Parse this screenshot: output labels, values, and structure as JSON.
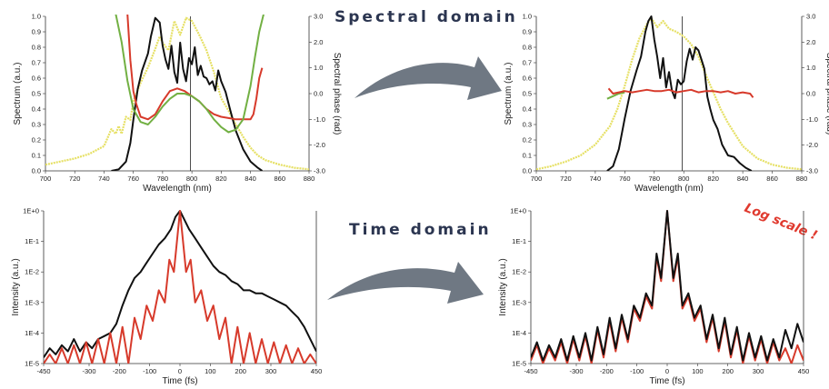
{
  "headings": {
    "spectral": "Spectral domain",
    "time": "Time domain",
    "note": "Log scale !"
  },
  "colors": {
    "black": "#111111",
    "red": "#d73a2b",
    "green": "#72b043",
    "yellow": "#e6e064",
    "arrow": "#6f7883"
  },
  "chart_data": [
    {
      "id": "spectral-before",
      "type": "line",
      "xlabel": "Wavelength (nm)",
      "ylabel": "Spectrum (a.u.)",
      "y2label": "Spectral phase (rad)",
      "xlim": [
        700,
        880
      ],
      "ylim": [
        0,
        1.0
      ],
      "y2lim": [
        -3.0,
        3.0
      ],
      "xticks": [
        "700",
        "720",
        "740",
        "760",
        "780",
        "800",
        "820",
        "840",
        "860",
        "880"
      ],
      "yticks": [
        "0.0",
        "0.1",
        "0.2",
        "0.3",
        "0.4",
        "0.5",
        "0.6",
        "0.7",
        "0.8",
        "0.9",
        "1.0"
      ],
      "y2ticks": [
        "-3.0",
        "-2.0",
        "-1.0",
        "0.0",
        "1.0",
        "2.0",
        "3.0"
      ],
      "vline": 799,
      "series": [
        {
          "color": "yellow",
          "axis": "left",
          "x": [
            700,
            710,
            720,
            730,
            740,
            745,
            748,
            750,
            752,
            755,
            758,
            760,
            765,
            770,
            775,
            778,
            780,
            784,
            788,
            792,
            796,
            800,
            805,
            810,
            815,
            820,
            825,
            830,
            835,
            840,
            845,
            850,
            860,
            870,
            880
          ],
          "y": [
            0.04,
            0.06,
            0.08,
            0.11,
            0.16,
            0.27,
            0.24,
            0.29,
            0.24,
            0.35,
            0.33,
            0.45,
            0.57,
            0.67,
            0.79,
            0.87,
            0.83,
            0.78,
            0.97,
            0.88,
            0.99,
            0.97,
            0.88,
            0.78,
            0.64,
            0.47,
            0.39,
            0.3,
            0.22,
            0.15,
            0.1,
            0.07,
            0.04,
            0.02,
            0.01
          ]
        },
        {
          "color": "black",
          "axis": "left",
          "x": [
            745,
            750,
            755,
            758,
            760,
            763,
            766,
            770,
            772,
            775,
            778,
            780,
            782,
            784,
            786,
            788,
            790,
            792,
            794,
            796,
            798,
            800,
            802,
            804,
            806,
            808,
            810,
            812,
            814,
            816,
            818,
            820,
            823,
            826,
            830,
            835,
            840,
            845,
            848
          ],
          "y": [
            0.0,
            0.01,
            0.06,
            0.18,
            0.33,
            0.53,
            0.65,
            0.76,
            0.87,
            0.99,
            0.96,
            0.81,
            0.72,
            0.66,
            0.81,
            0.64,
            0.57,
            0.83,
            0.66,
            0.58,
            0.73,
            0.69,
            0.8,
            0.62,
            0.68,
            0.61,
            0.6,
            0.56,
            0.58,
            0.52,
            0.65,
            0.58,
            0.51,
            0.4,
            0.26,
            0.14,
            0.06,
            0.02,
            0.0
          ]
        },
        {
          "color": "red",
          "axis": "right",
          "x": [
            756,
            758,
            760,
            762,
            765,
            770,
            775,
            780,
            785,
            790,
            795,
            800,
            805,
            810,
            815,
            820,
            825,
            830,
            835,
            840,
            842,
            844,
            846,
            848
          ],
          "y": [
            3.1,
            1.3,
            0.1,
            -0.4,
            -0.9,
            -1.0,
            -0.8,
            -0.3,
            0.1,
            0.2,
            0.1,
            -0.1,
            -0.3,
            -0.6,
            -0.8,
            -0.9,
            -0.95,
            -1.0,
            -1.0,
            -1.0,
            -0.8,
            -0.2,
            0.6,
            1.0
          ]
        },
        {
          "color": "green",
          "axis": "right",
          "x": [
            748,
            752,
            756,
            760,
            765,
            770,
            775,
            780,
            785,
            790,
            795,
            800,
            805,
            810,
            815,
            820,
            825,
            830,
            835,
            840,
            843,
            846,
            849
          ],
          "y": [
            3.1,
            2.0,
            0.5,
            -0.6,
            -1.1,
            -1.2,
            -0.9,
            -0.5,
            -0.2,
            0.0,
            0.0,
            -0.1,
            -0.3,
            -0.6,
            -1.0,
            -1.3,
            -1.5,
            -1.4,
            -1.0,
            0.3,
            1.4,
            2.4,
            3.1
          ]
        }
      ]
    },
    {
      "id": "spectral-after",
      "type": "line",
      "xlabel": "Wavelength (nm)",
      "ylabel": "Spectrum (a.u.)",
      "y2label": "Spectral phase (rad)",
      "xlim": [
        700,
        880
      ],
      "ylim": [
        0,
        1.0
      ],
      "y2lim": [
        -3.0,
        3.0
      ],
      "xticks": [
        "700",
        "720",
        "740",
        "760",
        "780",
        "800",
        "820",
        "840",
        "860",
        "880"
      ],
      "yticks": [
        "0.0",
        "0.1",
        "0.2",
        "0.3",
        "0.4",
        "0.5",
        "0.6",
        "0.7",
        "0.8",
        "0.9",
        "1.0"
      ],
      "y2ticks": [
        "-3.0",
        "-2.0",
        "-1.0",
        "0.0",
        "1.0",
        "2.0",
        "3.0"
      ],
      "vline": 799,
      "series": [
        {
          "color": "yellow",
          "axis": "left",
          "x": [
            700,
            710,
            720,
            730,
            740,
            750,
            755,
            760,
            765,
            770,
            775,
            778,
            782,
            786,
            790,
            795,
            800,
            805,
            810,
            815,
            820,
            825,
            830,
            840,
            850,
            860,
            870,
            880
          ],
          "y": [
            0.01,
            0.03,
            0.06,
            0.1,
            0.17,
            0.29,
            0.4,
            0.55,
            0.72,
            0.86,
            0.95,
            0.99,
            0.93,
            0.97,
            0.92,
            0.9,
            0.87,
            0.82,
            0.74,
            0.62,
            0.51,
            0.4,
            0.31,
            0.16,
            0.08,
            0.04,
            0.02,
            0.01
          ]
        },
        {
          "color": "black",
          "axis": "left",
          "x": [
            748,
            752,
            756,
            760,
            764,
            768,
            771,
            774,
            776,
            778,
            780,
            782,
            784,
            786,
            788,
            790,
            792,
            794,
            796,
            798,
            800,
            802,
            804,
            806,
            808,
            810,
            812,
            814,
            816,
            818,
            820,
            823,
            826,
            830,
            834,
            838,
            842,
            846
          ],
          "y": [
            0.0,
            0.03,
            0.14,
            0.34,
            0.52,
            0.65,
            0.74,
            0.9,
            0.97,
            1.0,
            0.85,
            0.74,
            0.6,
            0.73,
            0.54,
            0.64,
            0.52,
            0.47,
            0.59,
            0.56,
            0.58,
            0.71,
            0.79,
            0.72,
            0.8,
            0.78,
            0.72,
            0.66,
            0.48,
            0.4,
            0.33,
            0.27,
            0.17,
            0.1,
            0.09,
            0.05,
            0.02,
            0.0
          ]
        },
        {
          "color": "green",
          "axis": "right",
          "x": [
            748,
            752,
            756,
            760
          ],
          "y": [
            -0.2,
            -0.1,
            0.0,
            0.05
          ]
        },
        {
          "color": "red",
          "axis": "right",
          "x": [
            749,
            752,
            756,
            760,
            765,
            770,
            775,
            780,
            785,
            790,
            795,
            800,
            805,
            810,
            815,
            820,
            825,
            830,
            835,
            840,
            845,
            847
          ],
          "y": [
            0.2,
            0.0,
            0.05,
            0.1,
            0.05,
            0.1,
            0.15,
            0.1,
            0.1,
            0.15,
            0.05,
            0.1,
            0.15,
            0.05,
            0.1,
            0.1,
            0.05,
            0.1,
            0.0,
            0.05,
            0.0,
            -0.15
          ]
        }
      ]
    },
    {
      "id": "time-before",
      "type": "line",
      "xlabel": "Time (fs)",
      "ylabel": "Intensity (a.u.)",
      "xlim": [
        -450,
        450
      ],
      "ylog": true,
      "ylim": [
        "1E-5",
        "1E+0"
      ],
      "xticks": [
        "-450",
        "-300",
        "-200",
        "-100",
        "0",
        "100",
        "200",
        "300",
        "450"
      ],
      "yticks": [
        "1E-5",
        "1E-4",
        "1E-3",
        "1E-2",
        "1E-1",
        "1E+0"
      ],
      "series": [
        {
          "color": "black",
          "x": [
            -450,
            -430,
            -410,
            -390,
            -370,
            -350,
            -330,
            -310,
            -290,
            -270,
            -250,
            -230,
            -210,
            -190,
            -170,
            -150,
            -130,
            -110,
            -90,
            -70,
            -50,
            -30,
            -15,
            0,
            15,
            30,
            50,
            70,
            90,
            110,
            130,
            150,
            170,
            190,
            210,
            230,
            250,
            270,
            290,
            310,
            330,
            350,
            370,
            390,
            410,
            430,
            450
          ],
          "y": [
            -4.8,
            -4.5,
            -4.7,
            -4.4,
            -4.6,
            -4.2,
            -4.6,
            -4.3,
            -4.5,
            -4.2,
            -4.1,
            -4.0,
            -3.7,
            -3.1,
            -2.6,
            -2.2,
            -2.0,
            -1.7,
            -1.4,
            -1.1,
            -0.9,
            -0.6,
            -0.2,
            0.0,
            -0.3,
            -0.6,
            -0.9,
            -1.2,
            -1.5,
            -1.8,
            -2.0,
            -2.1,
            -2.3,
            -2.4,
            -2.6,
            -2.6,
            -2.7,
            -2.7,
            -2.8,
            -2.9,
            -3.0,
            -3.1,
            -3.3,
            -3.5,
            -3.8,
            -4.2,
            -4.6
          ]
        },
        {
          "color": "red",
          "x": [
            -450,
            -430,
            -410,
            -390,
            -370,
            -350,
            -330,
            -310,
            -290,
            -270,
            -250,
            -230,
            -210,
            -190,
            -170,
            -150,
            -130,
            -110,
            -90,
            -70,
            -50,
            -35,
            -20,
            0,
            20,
            35,
            50,
            70,
            90,
            110,
            130,
            150,
            170,
            190,
            210,
            230,
            250,
            270,
            290,
            310,
            330,
            350,
            370,
            390,
            410,
            430,
            450
          ],
          "y": [
            -5.0,
            -4.7,
            -5.0,
            -4.5,
            -5.0,
            -4.4,
            -5.0,
            -4.3,
            -5.0,
            -4.2,
            -5.0,
            -4.0,
            -5.0,
            -3.8,
            -5.0,
            -3.5,
            -4.2,
            -3.1,
            -3.6,
            -2.6,
            -3.0,
            -1.6,
            -2.0,
            0.0,
            -2.0,
            -1.6,
            -3.0,
            -2.6,
            -3.6,
            -3.1,
            -4.2,
            -3.5,
            -5.0,
            -3.8,
            -5.0,
            -4.0,
            -5.0,
            -4.2,
            -5.0,
            -4.3,
            -5.0,
            -4.4,
            -5.0,
            -4.5,
            -5.0,
            -4.7,
            -5.0
          ]
        }
      ]
    },
    {
      "id": "time-after",
      "type": "line",
      "xlabel": "Time (fs)",
      "ylabel": "Intensity (a.u.)",
      "xlim": [
        -450,
        450
      ],
      "ylog": true,
      "ylim": [
        "1E-5",
        "1E+0"
      ],
      "xticks": [
        "-450",
        "-300",
        "-200",
        "-100",
        "0",
        "100",
        "200",
        "300",
        "450"
      ],
      "yticks": [
        "1E-5",
        "1E-4",
        "1E-3",
        "1E-2",
        "1E-1",
        "1E+0"
      ],
      "series": [
        {
          "color": "red",
          "x": [
            -450,
            -430,
            -410,
            -390,
            -370,
            -350,
            -330,
            -310,
            -290,
            -270,
            -250,
            -230,
            -210,
            -190,
            -170,
            -150,
            -130,
            -110,
            -90,
            -70,
            -50,
            -35,
            -20,
            0,
            20,
            35,
            50,
            70,
            90,
            110,
            130,
            150,
            170,
            190,
            210,
            230,
            250,
            270,
            290,
            310,
            330,
            350,
            370,
            390,
            410,
            430,
            450
          ],
          "y": [
            -4.9,
            -4.4,
            -5.0,
            -4.5,
            -4.9,
            -4.3,
            -5.0,
            -4.2,
            -4.9,
            -4.1,
            -5.0,
            -3.9,
            -4.8,
            -3.6,
            -4.6,
            -3.5,
            -4.3,
            -3.2,
            -3.6,
            -2.8,
            -3.2,
            -1.5,
            -2.3,
            0.0,
            -2.3,
            -1.5,
            -3.2,
            -2.8,
            -3.6,
            -3.2,
            -4.3,
            -3.5,
            -4.6,
            -3.6,
            -4.8,
            -3.9,
            -5.0,
            -4.1,
            -4.9,
            -4.2,
            -5.0,
            -4.3,
            -4.9,
            -4.5,
            -5.0,
            -4.4,
            -4.9
          ]
        },
        {
          "color": "black",
          "x": [
            -450,
            -430,
            -410,
            -390,
            -370,
            -350,
            -330,
            -310,
            -290,
            -270,
            -250,
            -230,
            -210,
            -190,
            -170,
            -150,
            -130,
            -110,
            -90,
            -70,
            -50,
            -35,
            -20,
            0,
            20,
            35,
            50,
            70,
            90,
            110,
            130,
            150,
            170,
            190,
            210,
            230,
            250,
            270,
            290,
            310,
            330,
            350,
            370,
            390,
            410,
            430,
            450
          ],
          "y": [
            -4.8,
            -4.3,
            -4.9,
            -4.4,
            -4.8,
            -4.2,
            -4.9,
            -4.1,
            -4.8,
            -4.0,
            -4.9,
            -3.8,
            -4.7,
            -3.5,
            -4.5,
            -3.4,
            -4.2,
            -3.1,
            -3.5,
            -2.7,
            -3.1,
            -1.4,
            -2.2,
            0.0,
            -2.2,
            -1.4,
            -3.1,
            -2.7,
            -3.5,
            -3.1,
            -4.2,
            -3.4,
            -4.5,
            -3.5,
            -4.7,
            -3.8,
            -4.9,
            -4.0,
            -4.8,
            -4.1,
            -4.9,
            -4.2,
            -4.8,
            -3.9,
            -4.5,
            -3.7,
            -4.3
          ]
        }
      ]
    }
  ]
}
